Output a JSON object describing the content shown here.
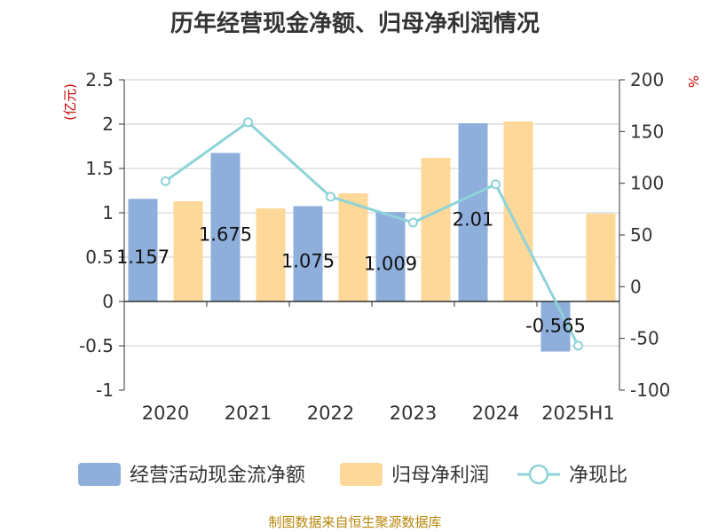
{
  "chart_data": {
    "type": "bar",
    "title": "历年经营现金净额、归母净利润情况",
    "categories": [
      "2020",
      "2021",
      "2022",
      "2023",
      "2024",
      "2025H1"
    ],
    "y_left": {
      "label": "(亿元)",
      "ylim": [
        -1,
        2.5
      ],
      "ticks": [
        "2.5",
        "2",
        "1.5",
        "1",
        "0.5",
        "0",
        "-0.5",
        "-1"
      ],
      "tick_values": [
        2.5,
        2,
        1.5,
        1,
        0.5,
        0,
        -0.5,
        -1
      ]
    },
    "y_right": {
      "label": "%",
      "ylim": [
        -100,
        200
      ],
      "ticks": [
        "200",
        "150",
        "100",
        "50",
        "0",
        "-50",
        "-100"
      ],
      "tick_values": [
        200,
        150,
        100,
        50,
        0,
        -50,
        -100
      ]
    },
    "series": [
      {
        "name": "经营活动现金流净额",
        "kind": "bar",
        "axis": "left",
        "color": "#8eaedb",
        "values": [
          1.157,
          1.675,
          1.075,
          1.009,
          2.01,
          -0.565
        ],
        "labels": [
          "1.157",
          "1.675",
          "1.075",
          "1.009",
          "2.01",
          "-0.565"
        ]
      },
      {
        "name": "归母净利润",
        "kind": "bar",
        "axis": "left",
        "color": "#fdd899",
        "values": [
          1.13,
          1.05,
          1.22,
          1.62,
          2.03,
          0.99
        ]
      },
      {
        "name": "净现比",
        "kind": "line",
        "axis": "right",
        "color": "#8ed3d9",
        "values": [
          102,
          159,
          87,
          62,
          99,
          -57
        ]
      }
    ],
    "legend_position": "bottom",
    "grid": true
  },
  "source": "制图数据来自恒生聚源数据库"
}
